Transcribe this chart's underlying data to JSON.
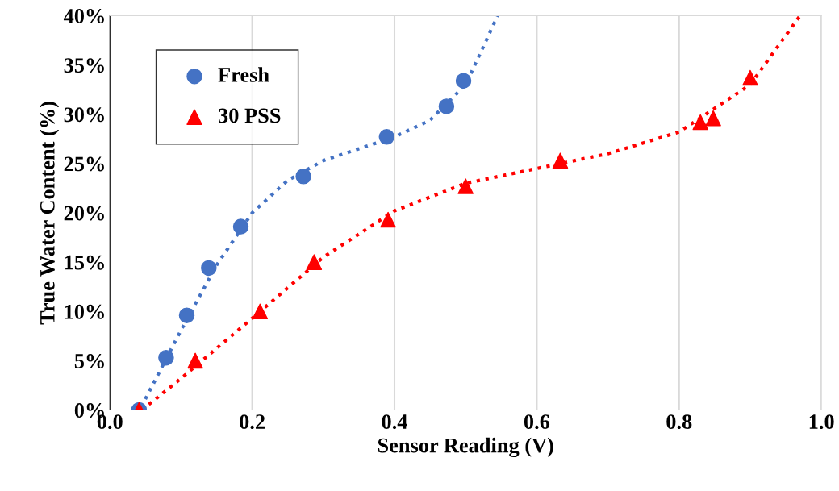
{
  "chart_data": {
    "type": "scatter",
    "xlabel": "Sensor Reading (V)",
    "ylabel": "True Water Content (%)",
    "xlim": [
      0,
      1
    ],
    "ylim": [
      0,
      40
    ],
    "xticks": [
      {
        "value": 0,
        "label": "0.0"
      },
      {
        "value": 0.2,
        "label": "0.2"
      },
      {
        "value": 0.4,
        "label": "0.4"
      },
      {
        "value": 0.6,
        "label": "0.6"
      },
      {
        "value": 0.8,
        "label": "0.8"
      },
      {
        "value": 1,
        "label": "1.0"
      }
    ],
    "yticks": [
      {
        "value": 0,
        "label": "0%"
      },
      {
        "value": 5,
        "label": "5%"
      },
      {
        "value": 10,
        "label": "10%"
      },
      {
        "value": 15,
        "label": "15%"
      },
      {
        "value": 20,
        "label": "20%"
      },
      {
        "value": 25,
        "label": "25%"
      },
      {
        "value": 30,
        "label": "30%"
      },
      {
        "value": 35,
        "label": "35%"
      },
      {
        "value": 40,
        "label": "40%"
      }
    ],
    "grid": "x",
    "legend": "top left",
    "series": [
      {
        "name": "Fresh",
        "color": "#4472c4",
        "marker": "circle",
        "x": [
          0.041,
          0.079,
          0.108,
          0.139,
          0.184,
          0.272,
          0.389,
          0.473,
          0.497
        ],
        "values": [
          0,
          5.3,
          9.6,
          14.4,
          18.6,
          23.7,
          27.7,
          30.8,
          33.4
        ]
      },
      {
        "name": "30 PSS",
        "color": "#ff0000",
        "marker": "triangle",
        "x": [
          0.041,
          0.12,
          0.211,
          0.287,
          0.391,
          0.5,
          0.633,
          0.83,
          0.848,
          0.9
        ],
        "values": [
          0,
          5,
          10,
          15,
          19.3,
          22.7,
          25.3,
          29.2,
          29.6,
          33.7
        ]
      },
      {
        "type": "line",
        "color": "#4472c4",
        "line_style": "dotted",
        "x": [
          0.044,
          0.1,
          0.15,
          0.2,
          0.25,
          0.3,
          0.35,
          0.4,
          0.45,
          0.5,
          0.545
        ],
        "values": [
          0.3,
          8.1,
          14.7,
          20,
          23.3,
          25.3,
          26.5,
          27.7,
          29.4,
          33,
          40
        ]
      },
      {
        "type": "line",
        "color": "#ff0000",
        "line_style": "dotted",
        "x": [
          0.045,
          0.1,
          0.2,
          0.3,
          0.4,
          0.5,
          0.6,
          0.7,
          0.8,
          0.9,
          0.97
        ],
        "values": [
          0,
          3.2,
          9.3,
          15.5,
          20.2,
          23,
          24.5,
          26,
          28.2,
          33,
          40
        ]
      }
    ]
  }
}
